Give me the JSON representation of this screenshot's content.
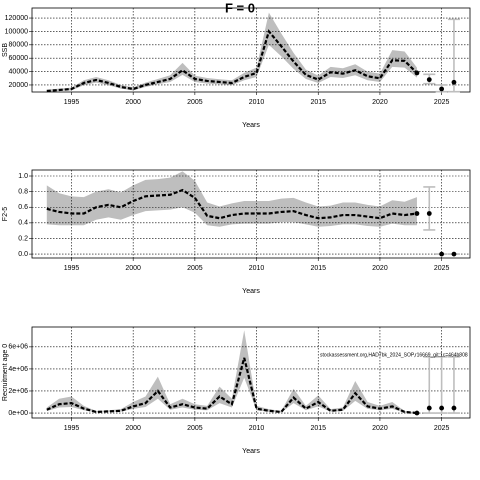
{
  "chart_data": [
    {
      "type": "line",
      "title": "F = 0",
      "xlabel": "Years",
      "ylabel": "SSB",
      "color": "#000000",
      "band_color": "#bebebe",
      "grid": true,
      "x": [
        1993,
        1994,
        1995,
        1996,
        1997,
        1998,
        1999,
        2000,
        2001,
        2002,
        2003,
        2004,
        2005,
        2006,
        2007,
        2008,
        2009,
        2010,
        2011,
        2012,
        2013,
        2014,
        2015,
        2016,
        2017,
        2018,
        2019,
        2020,
        2021,
        2022,
        2023
      ],
      "values": [
        11000,
        12500,
        14000,
        23000,
        27500,
        23000,
        17000,
        14000,
        20000,
        24500,
        29000,
        42000,
        29000,
        26000,
        24500,
        23000,
        32000,
        38000,
        100000,
        78000,
        55000,
        35000,
        28000,
        39000,
        37000,
        42000,
        33000,
        30000,
        57000,
        56000,
        38000
      ],
      "lower": [
        9500,
        11000,
        12000,
        19500,
        23500,
        19500,
        14500,
        12000,
        17000,
        21000,
        24500,
        35000,
        24500,
        22000,
        21000,
        19500,
        27000,
        32000,
        80000,
        63000,
        44000,
        29000,
        23000,
        32000,
        30500,
        34500,
        27000,
        24500,
        47000,
        46000,
        31000
      ],
      "upper": [
        13000,
        14500,
        16000,
        27000,
        32000,
        27000,
        20000,
        16500,
        23500,
        29000,
        34500,
        53000,
        34000,
        30500,
        28500,
        27000,
        38000,
        46000,
        128000,
        97000,
        68000,
        43000,
        34000,
        47000,
        45000,
        51000,
        40000,
        37000,
        72000,
        70000,
        46000
      ],
      "projection": {
        "x": [
          2024,
          2025,
          2026
        ],
        "values": [
          28000,
          14000,
          24000
        ],
        "lower": [
          22000,
          10000,
          10000
        ],
        "upper": [
          36000,
          20000,
          118000
        ]
      },
      "xlim": [
        1991.8,
        2027.3
      ],
      "xticks": [
        1995,
        2000,
        2005,
        2010,
        2015,
        2020,
        2025
      ],
      "ylim": [
        9500,
        135000
      ],
      "yticks": [
        20000,
        40000,
        60000,
        80000,
        100000,
        120000
      ]
    },
    {
      "type": "line",
      "xlabel": "Years",
      "ylabel": "F2-5",
      "color": "#000000",
      "band_color": "#bebebe",
      "grid": true,
      "x": [
        1993,
        1994,
        1995,
        1996,
        1997,
        1998,
        1999,
        2000,
        2001,
        2002,
        2003,
        2004,
        2005,
        2006,
        2007,
        2008,
        2009,
        2010,
        2011,
        2012,
        2013,
        2014,
        2015,
        2016,
        2017,
        2018,
        2019,
        2020,
        2021,
        2022,
        2023
      ],
      "values": [
        0.58,
        0.54,
        0.52,
        0.52,
        0.6,
        0.63,
        0.6,
        0.68,
        0.74,
        0.75,
        0.76,
        0.82,
        0.72,
        0.49,
        0.46,
        0.5,
        0.52,
        0.52,
        0.52,
        0.54,
        0.55,
        0.5,
        0.46,
        0.47,
        0.5,
        0.5,
        0.48,
        0.46,
        0.52,
        0.5,
        0.52
      ],
      "lower": [
        0.38,
        0.37,
        0.37,
        0.37,
        0.44,
        0.47,
        0.44,
        0.5,
        0.55,
        0.56,
        0.57,
        0.6,
        0.53,
        0.37,
        0.35,
        0.38,
        0.39,
        0.39,
        0.39,
        0.41,
        0.41,
        0.38,
        0.35,
        0.36,
        0.38,
        0.38,
        0.36,
        0.35,
        0.39,
        0.37,
        0.37
      ],
      "upper": [
        0.88,
        0.78,
        0.74,
        0.73,
        0.8,
        0.83,
        0.79,
        0.88,
        0.95,
        0.96,
        0.98,
        1.06,
        0.94,
        0.66,
        0.61,
        0.65,
        0.68,
        0.68,
        0.68,
        0.71,
        0.72,
        0.66,
        0.61,
        0.62,
        0.66,
        0.66,
        0.63,
        0.61,
        0.69,
        0.67,
        0.73
      ],
      "projection": {
        "x": [
          2024,
          2025,
          2026
        ],
        "values": [
          0.52,
          0,
          0
        ],
        "lower": [
          0.31,
          0,
          0
        ],
        "upper": [
          0.86,
          0,
          0
        ]
      },
      "xlim": [
        1991.8,
        2027.3
      ],
      "xticks": [
        1995,
        2000,
        2005,
        2010,
        2015,
        2020,
        2025
      ],
      "ylim": [
        -0.05,
        1.077
      ],
      "yticks": [
        {
          "value": 0,
          "label": "0.0"
        },
        0.2,
        0.4,
        0.6,
        0.8,
        {
          "value": 1,
          "label": "1.0"
        }
      ]
    },
    {
      "type": "line",
      "xlabel": "Years",
      "ylabel": "Recruitment age 0",
      "color": "#000000",
      "band_color": "#bebebe",
      "grid": true,
      "annotation": "stockassessment.org,HAD7bk_2024_SOP,r16669_git:1c=464b808",
      "x": [
        1993,
        1994,
        1995,
        1996,
        1997,
        1998,
        1999,
        2000,
        2001,
        2002,
        2003,
        2004,
        2005,
        2006,
        2007,
        2008,
        2009,
        2010,
        2011,
        2012,
        2013,
        2014,
        2015,
        2016,
        2017,
        2018,
        2019,
        2020,
        2021,
        2022,
        2023
      ],
      "values": [
        300000,
        800000,
        900000,
        400000,
        100000,
        150000,
        200000,
        600000,
        900000,
        2000000,
        500000,
        800000,
        500000,
        400000,
        1500000,
        800000,
        5000000,
        400000,
        200000,
        100000,
        1400000,
        400000,
        1000000,
        200000,
        300000,
        1800000,
        600000,
        400000,
        600000,
        100000,
        0
      ],
      "lower": [
        180000,
        500000,
        550000,
        250000,
        50000,
        80000,
        120000,
        380000,
        550000,
        1300000,
        300000,
        500000,
        300000,
        250000,
        900000,
        500000,
        3200000,
        250000,
        120000,
        50000,
        900000,
        250000,
        600000,
        120000,
        180000,
        1100000,
        380000,
        250000,
        380000,
        50000,
        0
      ],
      "upper": [
        500000,
        1300000,
        1500000,
        650000,
        180000,
        250000,
        350000,
        1000000,
        1500000,
        3300000,
        800000,
        1300000,
        800000,
        650000,
        2400000,
        1300000,
        7500000,
        650000,
        350000,
        180000,
        2200000,
        650000,
        1600000,
        350000,
        500000,
        2900000,
        1000000,
        650000,
        1000000,
        180000,
        50000
      ],
      "projection": {
        "x": [
          2024,
          2025,
          2026
        ],
        "values": [
          450000,
          450000,
          450000
        ],
        "lower": [
          0,
          0,
          0
        ],
        "upper": [
          5100000,
          5100000,
          5100000
        ]
      },
      "xlim": [
        1991.8,
        2027.3
      ],
      "xticks": [
        1995,
        2000,
        2005,
        2010,
        2015,
        2020,
        2025
      ],
      "ylim": [
        -450000,
        7800000
      ],
      "yticks": [
        {
          "value": 0,
          "label": "0e+00"
        },
        {
          "value": 2000000,
          "label": "2e+06"
        },
        {
          "value": 4000000,
          "label": "4e+06"
        },
        {
          "value": 6000000,
          "label": "6e+06"
        }
      ]
    }
  ]
}
